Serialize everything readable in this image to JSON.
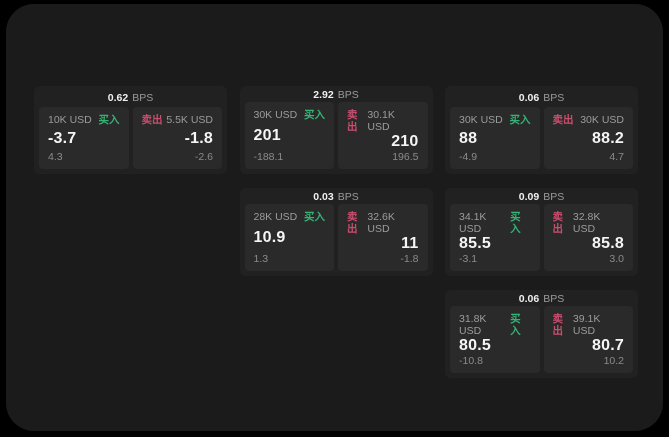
{
  "labels": {
    "bps_unit": "BPS",
    "buy": "买入",
    "sell": "卖出"
  },
  "colors": {
    "background": "#000000",
    "panel": "#1b1b1b",
    "card": "#212121",
    "subpanel": "#2a2a2a",
    "text_primary": "#f5f5f5",
    "text_secondary": "#9c9c9c",
    "buy_green": "#33b374",
    "sell_rose": "#cb4d6e"
  },
  "cards": [
    {
      "row": 1,
      "col": 1,
      "bps": "0.62",
      "buy": {
        "amount": "10K USD",
        "price": "-3.7",
        "delta": "4.3"
      },
      "sell": {
        "amount": "5.5K USD",
        "price": "-1.8",
        "delta": "-2.6"
      }
    },
    {
      "row": 1,
      "col": 2,
      "bps": "2.92",
      "buy": {
        "amount": "30K USD",
        "price": "201",
        "delta": "-188.1"
      },
      "sell": {
        "amount": "30.1K USD",
        "price": "210",
        "delta": "196.5"
      }
    },
    {
      "row": 1,
      "col": 3,
      "bps": "0.06",
      "buy": {
        "amount": "30K USD",
        "price": "88",
        "delta": "-4.9"
      },
      "sell": {
        "amount": "30K USD",
        "price": "88.2",
        "delta": "4.7"
      }
    },
    {
      "row": 2,
      "col": 2,
      "bps": "0.03",
      "buy": {
        "amount": "28K USD",
        "price": "10.9",
        "delta": "1.3"
      },
      "sell": {
        "amount": "32.6K USD",
        "price": "11",
        "delta": "-1.8"
      }
    },
    {
      "row": 2,
      "col": 3,
      "bps": "0.09",
      "buy": {
        "amount": "34.1K USD",
        "price": "85.5",
        "delta": "-3.1"
      },
      "sell": {
        "amount": "32.8K USD",
        "price": "85.8",
        "delta": "3.0"
      }
    },
    {
      "row": 3,
      "col": 3,
      "bps": "0.06",
      "buy": {
        "amount": "31.8K USD",
        "price": "80.5",
        "delta": "-10.8"
      },
      "sell": {
        "amount": "39.1K USD",
        "price": "80.7",
        "delta": "10.2"
      }
    }
  ]
}
